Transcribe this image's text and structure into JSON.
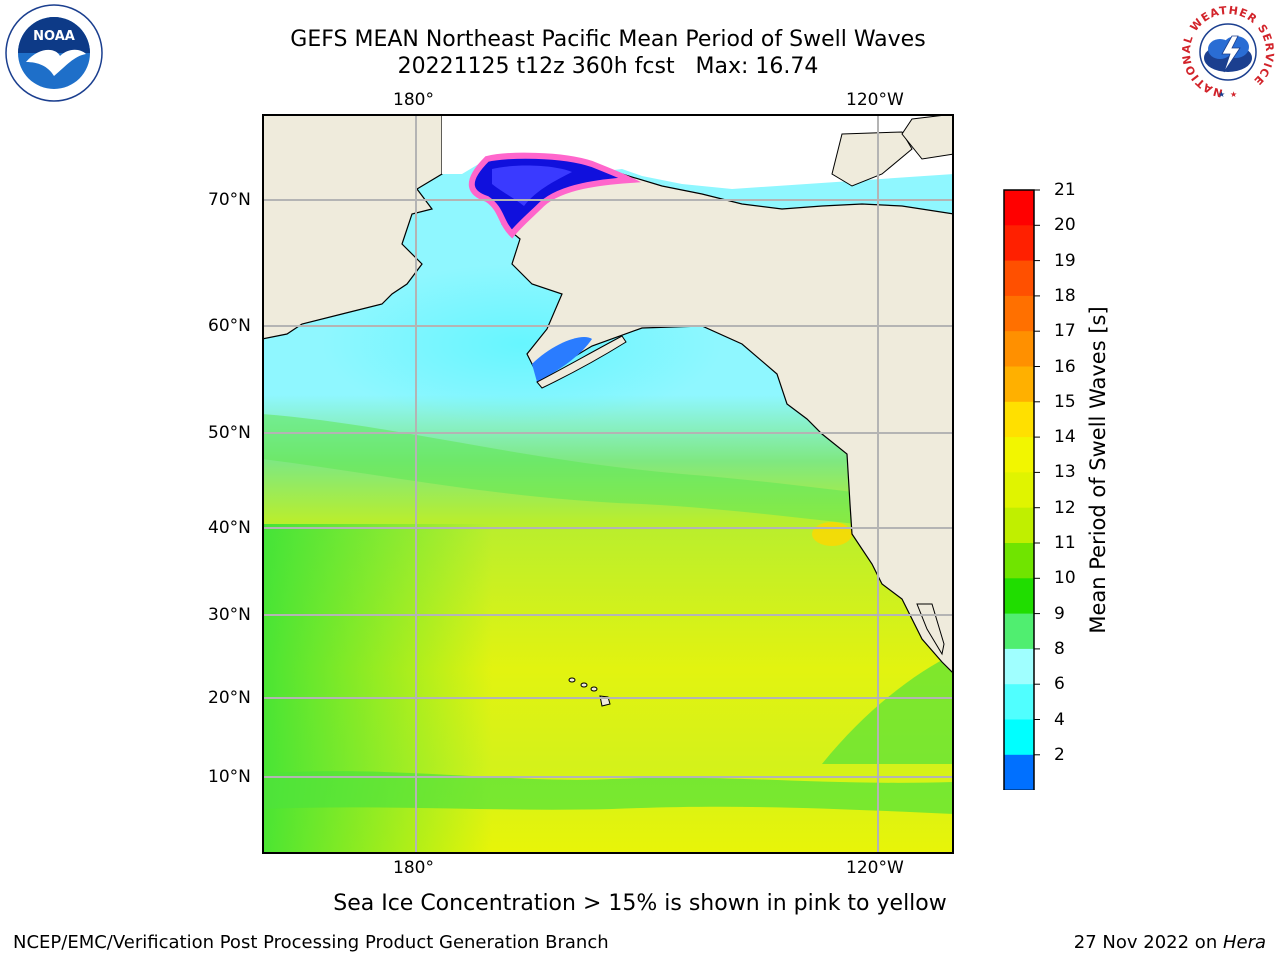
{
  "title": {
    "line1": "GEFS MEAN Northeast Pacific Mean Period of Swell Waves",
    "line2": "20221125 t12z 360h fcst   Max: 16.74"
  },
  "axes": {
    "top_labels": [
      "180°",
      "120°W"
    ],
    "bottom_labels": [
      "180°",
      "120°W"
    ],
    "left_labels": [
      "70°N",
      "60°N",
      "50°N",
      "40°N",
      "30°N",
      "20°N",
      "10°N"
    ]
  },
  "colorbar": {
    "label": "Mean Period of Swell Waves [s]",
    "ticks": [
      "21",
      "20",
      "19",
      "18",
      "17",
      "16",
      "15",
      "14",
      "13",
      "12",
      "11",
      "10",
      "9",
      "8",
      "6",
      "4",
      "2"
    ],
    "colors": [
      "#ff0000",
      "#ff2000",
      "#ff5000",
      "#ff7000",
      "#ff9000",
      "#ffb000",
      "#ffe000",
      "#f2f600",
      "#e0f400",
      "#c0ef00",
      "#70e400",
      "#20dd00",
      "#50ee70",
      "#a0ffff",
      "#50ffff",
      "#00ffff",
      "#0070ff"
    ],
    "extend_color": "#0000ee"
  },
  "caption": "Sea Ice Concentration > 15% is shown in pink to yellow",
  "footer": {
    "left": "NCEP/EMC/Verification Post Processing Product Generation Branch",
    "right_prefix": "27 Nov 2022 on ",
    "right_host": "Hera"
  },
  "logos": {
    "noaa": "NOAA",
    "nws_ring": "NATIONAL WEATHER SERVICE"
  },
  "colors": {
    "land": "#efebdc",
    "grid": "#b4b4b4",
    "sea_ice": "#ff66cc"
  }
}
